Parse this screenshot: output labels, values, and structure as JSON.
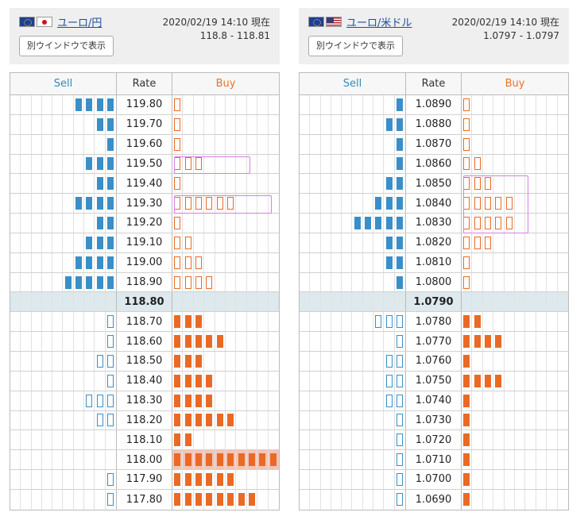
{
  "colors": {
    "sell": "#3a8fc8",
    "buy": "#ea6a25",
    "current_row": "#dde9ec",
    "highlight_box": "#d77ee0"
  },
  "panels": [
    {
      "pair_label": "ユーロ/円",
      "flags": [
        "eu-flag-icon",
        "jp-flag-icon"
      ],
      "timestamp": "2020/02/19 14:10 現在",
      "spread": "118.8 - 118.81",
      "window_button": "別ウインドウで表示",
      "headers": {
        "sell": "Sell",
        "rate": "Rate",
        "buy": "Buy"
      },
      "current_rate": "118.80",
      "rows": [
        {
          "rate": "119.80",
          "sell": 4,
          "sell_type": "filled",
          "buy": 1,
          "buy_type": "outline"
        },
        {
          "rate": "119.70",
          "sell": 2,
          "sell_type": "filled",
          "buy": 1,
          "buy_type": "outline"
        },
        {
          "rate": "119.60",
          "sell": 1,
          "sell_type": "filled",
          "buy": 1,
          "buy_type": "outline"
        },
        {
          "rate": "119.50",
          "sell": 3,
          "sell_type": "filled",
          "buy": 3,
          "buy_type": "outline"
        },
        {
          "rate": "119.40",
          "sell": 2,
          "sell_type": "filled",
          "buy": 1,
          "buy_type": "outline"
        },
        {
          "rate": "119.30",
          "sell": 4,
          "sell_type": "filled",
          "buy": 6,
          "buy_type": "outline"
        },
        {
          "rate": "119.20",
          "sell": 2,
          "sell_type": "filled",
          "buy": 1,
          "buy_type": "outline"
        },
        {
          "rate": "119.10",
          "sell": 3,
          "sell_type": "filled",
          "buy": 2,
          "buy_type": "outline"
        },
        {
          "rate": "119.00",
          "sell": 4,
          "sell_type": "filled",
          "buy": 3,
          "buy_type": "outline"
        },
        {
          "rate": "118.90",
          "sell": 5,
          "sell_type": "filled",
          "buy": 4,
          "buy_type": "outline"
        },
        {
          "rate": "118.80",
          "sell": 0,
          "sell_type": "none",
          "buy": 0,
          "buy_type": "none",
          "current": true
        },
        {
          "rate": "118.70",
          "sell": 1,
          "sell_type": "outline",
          "buy": 3,
          "buy_type": "filled"
        },
        {
          "rate": "118.60",
          "sell": 1,
          "sell_type": "outline",
          "buy": 5,
          "buy_type": "filled"
        },
        {
          "rate": "118.50",
          "sell": 2,
          "sell_type": "outline",
          "buy": 3,
          "buy_type": "filled"
        },
        {
          "rate": "118.40",
          "sell": 1,
          "sell_type": "outline",
          "buy": 4,
          "buy_type": "filled"
        },
        {
          "rate": "118.30",
          "sell": 3,
          "sell_type": "outline",
          "buy": 4,
          "buy_type": "filled"
        },
        {
          "rate": "118.20",
          "sell": 2,
          "sell_type": "outline",
          "buy": 6,
          "buy_type": "filled"
        },
        {
          "rate": "118.10",
          "sell": 0,
          "sell_type": "none",
          "buy": 2,
          "buy_type": "filled"
        },
        {
          "rate": "118.00",
          "sell": 0,
          "sell_type": "none",
          "buy": 10,
          "buy_type": "filled",
          "highlight": true
        },
        {
          "rate": "117.90",
          "sell": 1,
          "sell_type": "outline",
          "buy": 6,
          "buy_type": "filled"
        },
        {
          "rate": "117.80",
          "sell": 1,
          "sell_type": "outline",
          "buy": 8,
          "buy_type": "filled"
        }
      ]
    },
    {
      "pair_label": "ユーロ/米ドル",
      "flags": [
        "eu-flag-icon",
        "us-flag-icon"
      ],
      "timestamp": "2020/02/19 14:10 現在",
      "spread": "1.0797 - 1.0797",
      "window_button": "別ウインドウで表示",
      "headers": {
        "sell": "Sell",
        "rate": "Rate",
        "buy": "Buy"
      },
      "current_rate": "1.0790",
      "rows": [
        {
          "rate": "1.0890",
          "sell": 1,
          "sell_type": "filled",
          "buy": 1,
          "buy_type": "outline"
        },
        {
          "rate": "1.0880",
          "sell": 2,
          "sell_type": "filled",
          "buy": 1,
          "buy_type": "outline"
        },
        {
          "rate": "1.0870",
          "sell": 1,
          "sell_type": "filled",
          "buy": 1,
          "buy_type": "outline"
        },
        {
          "rate": "1.0860",
          "sell": 1,
          "sell_type": "filled",
          "buy": 2,
          "buy_type": "outline"
        },
        {
          "rate": "1.0850",
          "sell": 2,
          "sell_type": "filled",
          "buy": 3,
          "buy_type": "outline"
        },
        {
          "rate": "1.0840",
          "sell": 3,
          "sell_type": "filled",
          "buy": 5,
          "buy_type": "outline"
        },
        {
          "rate": "1.0830",
          "sell": 5,
          "sell_type": "filled",
          "buy": 5,
          "buy_type": "outline"
        },
        {
          "rate": "1.0820",
          "sell": 2,
          "sell_type": "filled",
          "buy": 3,
          "buy_type": "outline"
        },
        {
          "rate": "1.0810",
          "sell": 2,
          "sell_type": "filled",
          "buy": 1,
          "buy_type": "outline"
        },
        {
          "rate": "1.0800",
          "sell": 1,
          "sell_type": "filled",
          "buy": 1,
          "buy_type": "outline"
        },
        {
          "rate": "1.0790",
          "sell": 0,
          "sell_type": "none",
          "buy": 0,
          "buy_type": "none",
          "current": true
        },
        {
          "rate": "1.0780",
          "sell": 3,
          "sell_type": "outline",
          "buy": 2,
          "buy_type": "filled"
        },
        {
          "rate": "1.0770",
          "sell": 1,
          "sell_type": "outline",
          "buy": 4,
          "buy_type": "filled"
        },
        {
          "rate": "1.0760",
          "sell": 2,
          "sell_type": "outline",
          "buy": 1,
          "buy_type": "filled"
        },
        {
          "rate": "1.0750",
          "sell": 2,
          "sell_type": "outline",
          "buy": 4,
          "buy_type": "filled"
        },
        {
          "rate": "1.0740",
          "sell": 2,
          "sell_type": "outline",
          "buy": 1,
          "buy_type": "filled"
        },
        {
          "rate": "1.0730",
          "sell": 1,
          "sell_type": "outline",
          "buy": 1,
          "buy_type": "filled"
        },
        {
          "rate": "1.0720",
          "sell": 1,
          "sell_type": "outline",
          "buy": 1,
          "buy_type": "filled"
        },
        {
          "rate": "1.0710",
          "sell": 1,
          "sell_type": "outline",
          "buy": 1,
          "buy_type": "filled"
        },
        {
          "rate": "1.0700",
          "sell": 1,
          "sell_type": "outline",
          "buy": 1,
          "buy_type": "filled"
        },
        {
          "rate": "1.0690",
          "sell": 1,
          "sell_type": "outline",
          "buy": 1,
          "buy_type": "filled"
        }
      ]
    }
  ]
}
